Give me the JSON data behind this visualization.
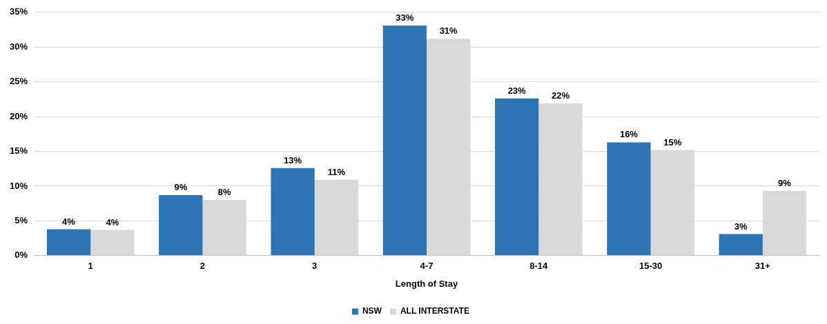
{
  "chart_data": {
    "type": "bar",
    "xlabel": "Length of Stay",
    "categories": [
      "1",
      "2",
      "3",
      "4-7",
      "8-14",
      "15-30",
      "31+"
    ],
    "series": [
      {
        "name": "NSW",
        "color": "#2e75b6",
        "values": [
          3.8,
          8.7,
          12.6,
          33.1,
          22.6,
          16.3,
          3.1
        ],
        "value_labels": [
          "4%",
          "9%",
          "13%",
          "33%",
          "23%",
          "16%",
          "3%"
        ]
      },
      {
        "name": "ALL INTERSTATE",
        "color": "#d9d9d9",
        "values": [
          3.7,
          8.0,
          10.9,
          31.2,
          21.9,
          15.2,
          9.3
        ],
        "value_labels": [
          "4%",
          "8%",
          "11%",
          "31%",
          "22%",
          "15%",
          "9%"
        ]
      }
    ],
    "ylim": [
      0,
      35
    ],
    "yticks": [
      {
        "value": 0,
        "label": "0%"
      },
      {
        "value": 5,
        "label": "5%"
      },
      {
        "value": 10,
        "label": "10%"
      },
      {
        "value": 15,
        "label": "15%"
      },
      {
        "value": 20,
        "label": "20%"
      },
      {
        "value": 25,
        "label": "25%"
      },
      {
        "value": 30,
        "label": "30%"
      },
      {
        "value": 35,
        "label": "35%"
      }
    ],
    "grid": "y",
    "legend": "bottom"
  }
}
